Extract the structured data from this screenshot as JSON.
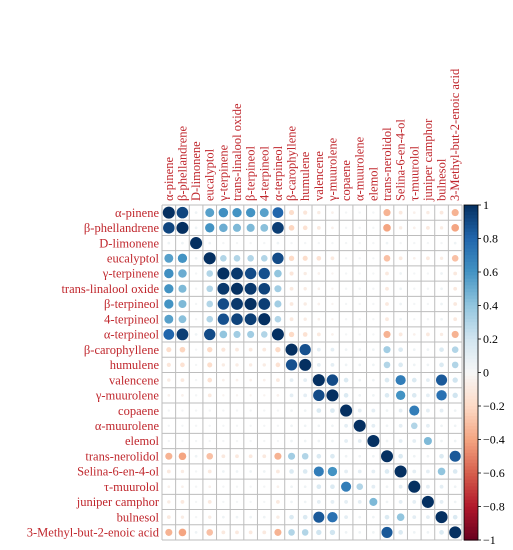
{
  "chart_data": {
    "type": "heatmap",
    "variables": [
      "α-pinene",
      "β-phellandrene",
      "D-limonene",
      "eucalyptol",
      "γ-terpinene",
      "trans-linalool oxide",
      "β-terpineol",
      "4-terpineol",
      "α-terpineol",
      "β-carophyllene",
      "humulene",
      "valencene",
      "γ-muurolene",
      "copaene",
      "α-muurolene",
      "elemol",
      "trans-nerolidol",
      "Selina-6-en-4-ol",
      "τ-muurolol",
      "juniper camphor",
      "bulnesol",
      "3-Methyl-but-2-enoic acid"
    ],
    "matrix": [
      [
        1,
        0.92,
        0.05,
        0.55,
        0.62,
        0.6,
        0.6,
        0.55,
        0.8,
        -0.18,
        -0.12,
        -0.08,
        -0.05,
        0.02,
        0.02,
        0.02,
        -0.35,
        -0.1,
        -0.05,
        -0.08,
        -0.1,
        -0.35
      ],
      [
        0.92,
        1,
        0.05,
        0.6,
        0.5,
        0.45,
        0.45,
        0.42,
        0.95,
        -0.22,
        -0.15,
        -0.1,
        -0.05,
        0.02,
        0.02,
        0.02,
        -0.4,
        -0.08,
        -0.05,
        -0.1,
        -0.08,
        -0.4
      ],
      [
        0.05,
        0.05,
        1,
        0.05,
        0.02,
        0.02,
        0.02,
        0.02,
        0.05,
        0.02,
        0.02,
        0.02,
        0.02,
        0.02,
        0.02,
        0.02,
        0.05,
        0.02,
        0.02,
        0.02,
        0.02,
        0.05
      ],
      [
        0.55,
        0.6,
        0.05,
        1,
        0.3,
        0.3,
        0.3,
        0.3,
        0.9,
        -0.2,
        -0.18,
        -0.15,
        -0.1,
        0.02,
        0.02,
        0.02,
        -0.3,
        -0.1,
        -0.05,
        -0.1,
        -0.08,
        -0.3
      ],
      [
        0.62,
        0.5,
        0.02,
        0.3,
        1,
        0.97,
        0.9,
        0.88,
        0.4,
        -0.12,
        -0.08,
        -0.05,
        -0.03,
        0.02,
        0.02,
        0.02,
        -0.1,
        0.05,
        0.02,
        0.02,
        0.05,
        -0.1
      ],
      [
        0.6,
        0.45,
        0.02,
        0.3,
        0.97,
        1,
        0.97,
        0.93,
        0.35,
        -0.1,
        -0.08,
        -0.05,
        -0.03,
        0.02,
        0.02,
        0.02,
        -0.1,
        0.05,
        0.02,
        0.02,
        0.05,
        -0.1
      ],
      [
        0.6,
        0.45,
        0.02,
        0.3,
        0.9,
        0.97,
        1,
        0.95,
        0.35,
        -0.1,
        -0.08,
        -0.05,
        -0.03,
        0.02,
        0.02,
        0.02,
        -0.1,
        0.05,
        0.02,
        0.02,
        0.05,
        -0.1
      ],
      [
        0.55,
        0.42,
        0.02,
        0.3,
        0.88,
        0.93,
        0.95,
        1,
        0.3,
        -0.1,
        -0.08,
        -0.05,
        -0.03,
        0.02,
        0.02,
        0.02,
        -0.1,
        0.05,
        0.02,
        0.02,
        0.05,
        -0.1
      ],
      [
        0.8,
        0.95,
        0.05,
        0.9,
        0.4,
        0.35,
        0.35,
        0.3,
        1,
        -0.2,
        -0.15,
        -0.1,
        -0.05,
        0.02,
        0.02,
        0.02,
        -0.35,
        -0.1,
        -0.05,
        -0.1,
        -0.08,
        -0.35
      ],
      [
        -0.18,
        -0.22,
        0.02,
        -0.2,
        -0.12,
        -0.1,
        -0.1,
        -0.1,
        -0.2,
        1,
        0.88,
        0.1,
        0.1,
        0.05,
        0.05,
        0.05,
        0.35,
        0.15,
        0.05,
        0.05,
        0.15,
        0.3
      ],
      [
        -0.12,
        -0.15,
        0.02,
        -0.18,
        -0.08,
        -0.08,
        -0.08,
        -0.08,
        -0.15,
        0.88,
        1,
        0.1,
        0.1,
        0.05,
        0.05,
        0.05,
        0.3,
        0.15,
        0.05,
        0.05,
        0.15,
        0.3
      ],
      [
        -0.08,
        -0.1,
        0.02,
        -0.15,
        -0.05,
        -0.05,
        -0.05,
        -0.05,
        -0.1,
        0.1,
        0.1,
        1,
        0.9,
        0.15,
        0.05,
        0.05,
        0.15,
        0.7,
        0.15,
        0.1,
        0.85,
        0.2
      ],
      [
        -0.05,
        -0.05,
        0.02,
        -0.1,
        -0.03,
        -0.03,
        -0.03,
        -0.03,
        -0.05,
        0.1,
        0.1,
        0.9,
        1,
        0.15,
        0.05,
        0.05,
        0.15,
        0.6,
        0.15,
        0.1,
        0.75,
        0.2
      ],
      [
        0.02,
        0.02,
        0.02,
        0.02,
        0.02,
        0.02,
        0.02,
        0.02,
        0.02,
        0.05,
        0.05,
        0.15,
        0.15,
        1,
        0.1,
        0.1,
        0.05,
        0.1,
        0.7,
        0.1,
        0.1,
        0.05
      ],
      [
        0.02,
        0.02,
        0.02,
        0.02,
        0.02,
        0.02,
        0.02,
        0.02,
        0.02,
        0.05,
        0.05,
        0.05,
        0.05,
        0.1,
        1,
        0.1,
        0.05,
        0.1,
        0.3,
        0.1,
        0.05,
        0.05
      ],
      [
        0.02,
        0.02,
        0.02,
        0.02,
        0.02,
        0.02,
        0.02,
        0.02,
        0.02,
        0.05,
        0.05,
        0.05,
        0.05,
        0.1,
        0.1,
        1,
        0.05,
        0.1,
        0.1,
        0.45,
        0.05,
        0.05
      ],
      [
        -0.35,
        -0.4,
        0.05,
        -0.3,
        -0.1,
        -0.1,
        -0.1,
        -0.1,
        -0.35,
        0.35,
        0.3,
        0.15,
        0.15,
        0.05,
        0.05,
        0.05,
        1,
        0.15,
        0.05,
        0.05,
        0.15,
        0.85
      ],
      [
        -0.1,
        -0.08,
        0.02,
        -0.1,
        0.05,
        0.05,
        0.05,
        0.05,
        -0.1,
        0.15,
        0.15,
        0.7,
        0.6,
        0.1,
        0.1,
        0.1,
        0.15,
        1,
        0.1,
        0.1,
        0.4,
        0.15
      ],
      [
        -0.05,
        -0.05,
        0.02,
        -0.05,
        0.02,
        0.02,
        0.02,
        0.02,
        -0.05,
        0.05,
        0.05,
        0.15,
        0.15,
        0.7,
        0.3,
        0.1,
        0.05,
        0.1,
        1,
        0.1,
        0.1,
        0.05
      ],
      [
        -0.08,
        -0.1,
        0.02,
        -0.1,
        0.02,
        0.02,
        0.02,
        0.02,
        -0.1,
        0.05,
        0.05,
        0.1,
        0.1,
        0.1,
        0.1,
        0.45,
        0.05,
        0.1,
        0.1,
        1,
        0.1,
        0.05
      ],
      [
        -0.1,
        -0.08,
        0.02,
        -0.08,
        0.05,
        0.05,
        0.05,
        0.05,
        -0.08,
        0.15,
        0.15,
        0.85,
        0.75,
        0.1,
        0.05,
        0.05,
        0.15,
        0.4,
        0.1,
        0.1,
        1,
        0.15
      ],
      [
        -0.35,
        -0.4,
        0.05,
        -0.3,
        -0.1,
        -0.1,
        -0.1,
        -0.1,
        -0.35,
        0.3,
        0.3,
        0.2,
        0.2,
        0.05,
        0.05,
        0.05,
        0.85,
        0.15,
        0.05,
        0.05,
        0.15,
        1
      ]
    ],
    "colorbar": {
      "min": -1,
      "max": 1,
      "ticks": [
        "1",
        "0.8",
        "0.6",
        "0.4",
        "0.2",
        "0",
        "−0.2",
        "−0.4",
        "−0.6",
        "−0.8",
        "−1"
      ]
    },
    "colors": {
      "positive": "#053061",
      "neutral": "#f7f7f7",
      "negative": "#67001f",
      "label": "#c0272d",
      "grid": "#bdbdbd"
    }
  }
}
